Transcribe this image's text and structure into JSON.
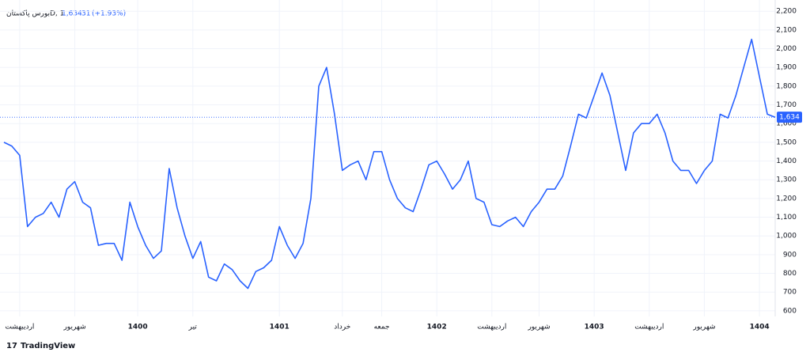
{
  "chart_data": {
    "type": "line",
    "symbol": "بورس پاکستانD, 1",
    "last_price": {
      "value": 1634,
      "label": "1,634"
    },
    "change": 31,
    "change_percent": "(+1.93%)",
    "brand": "TradingView",
    "categories": [
      null,
      null,
      "اردیبهشت",
      null,
      null,
      null,
      null,
      null,
      null,
      "شهریور",
      null,
      null,
      null,
      null,
      null,
      null,
      null,
      "1400",
      null,
      null,
      null,
      null,
      null,
      null,
      "تیر",
      null,
      null,
      null,
      null,
      null,
      null,
      null,
      null,
      null,
      null,
      "1401",
      null,
      null,
      null,
      null,
      null,
      null,
      null,
      "خرداد",
      null,
      null,
      null,
      null,
      "جمعه",
      null,
      null,
      null,
      null,
      null,
      null,
      "1402",
      null,
      null,
      null,
      null,
      null,
      null,
      "اردیبهشت",
      null,
      null,
      null,
      null,
      null,
      "شهریور",
      null,
      null,
      null,
      null,
      null,
      null,
      "1403",
      null,
      null,
      null,
      null,
      null,
      null,
      "اردیبهشت",
      null,
      null,
      null,
      null,
      null,
      null,
      "شهریور",
      null,
      null,
      null,
      null,
      null,
      null,
      "1404",
      null,
      null
    ],
    "series": [
      {
        "name": "بورس پاکستانD",
        "color": "#2962ff",
        "values": [
          1500,
          1480,
          1430,
          1050,
          1100,
          1120,
          1180,
          1100,
          1250,
          1290,
          1180,
          1150,
          950,
          960,
          960,
          870,
          1180,
          1050,
          950,
          880,
          920,
          1360,
          1150,
          1000,
          880,
          970,
          780,
          760,
          850,
          820,
          760,
          720,
          810,
          830,
          870,
          1050,
          950,
          880,
          960,
          1200,
          1800,
          1900,
          1650,
          1350,
          1380,
          1400,
          1300,
          1450,
          1450,
          1300,
          1200,
          1150,
          1130,
          1250,
          1380,
          1400,
          1330,
          1250,
          1300,
          1400,
          1200,
          1180,
          1060,
          1050,
          1080,
          1100,
          1050,
          1130,
          1180,
          1250,
          1250,
          1320,
          1480,
          1650,
          1630,
          1750,
          1870,
          1750,
          1550,
          1350,
          1550,
          1600,
          1600,
          1650,
          1550,
          1400,
          1350,
          1350,
          1280,
          1350,
          1400,
          1650,
          1630,
          1750,
          1900,
          2050,
          1850,
          1650,
          1634
        ]
      }
    ],
    "ylim": [
      570,
      2260
    ],
    "yticks": [
      600,
      700,
      800,
      900,
      {
        "value": 1000,
        "label": "1,000"
      },
      {
        "value": 1100,
        "label": "1,100"
      },
      {
        "value": 1200,
        "label": "1,200"
      },
      {
        "value": 1300,
        "label": "1,300"
      },
      {
        "value": 1400,
        "label": "1,400"
      },
      {
        "value": 1500,
        "label": "1,500"
      },
      {
        "value": 1600,
        "label": "1,600"
      },
      {
        "value": 1700,
        "label": "1,700"
      },
      {
        "value": 1800,
        "label": "1,800"
      },
      {
        "value": 1900,
        "label": "1,900"
      },
      {
        "value": 2000,
        "label": "2,000"
      },
      {
        "value": 2100,
        "label": "2,100"
      },
      {
        "value": 2200,
        "label": "2,200"
      }
    ],
    "grid": true
  }
}
